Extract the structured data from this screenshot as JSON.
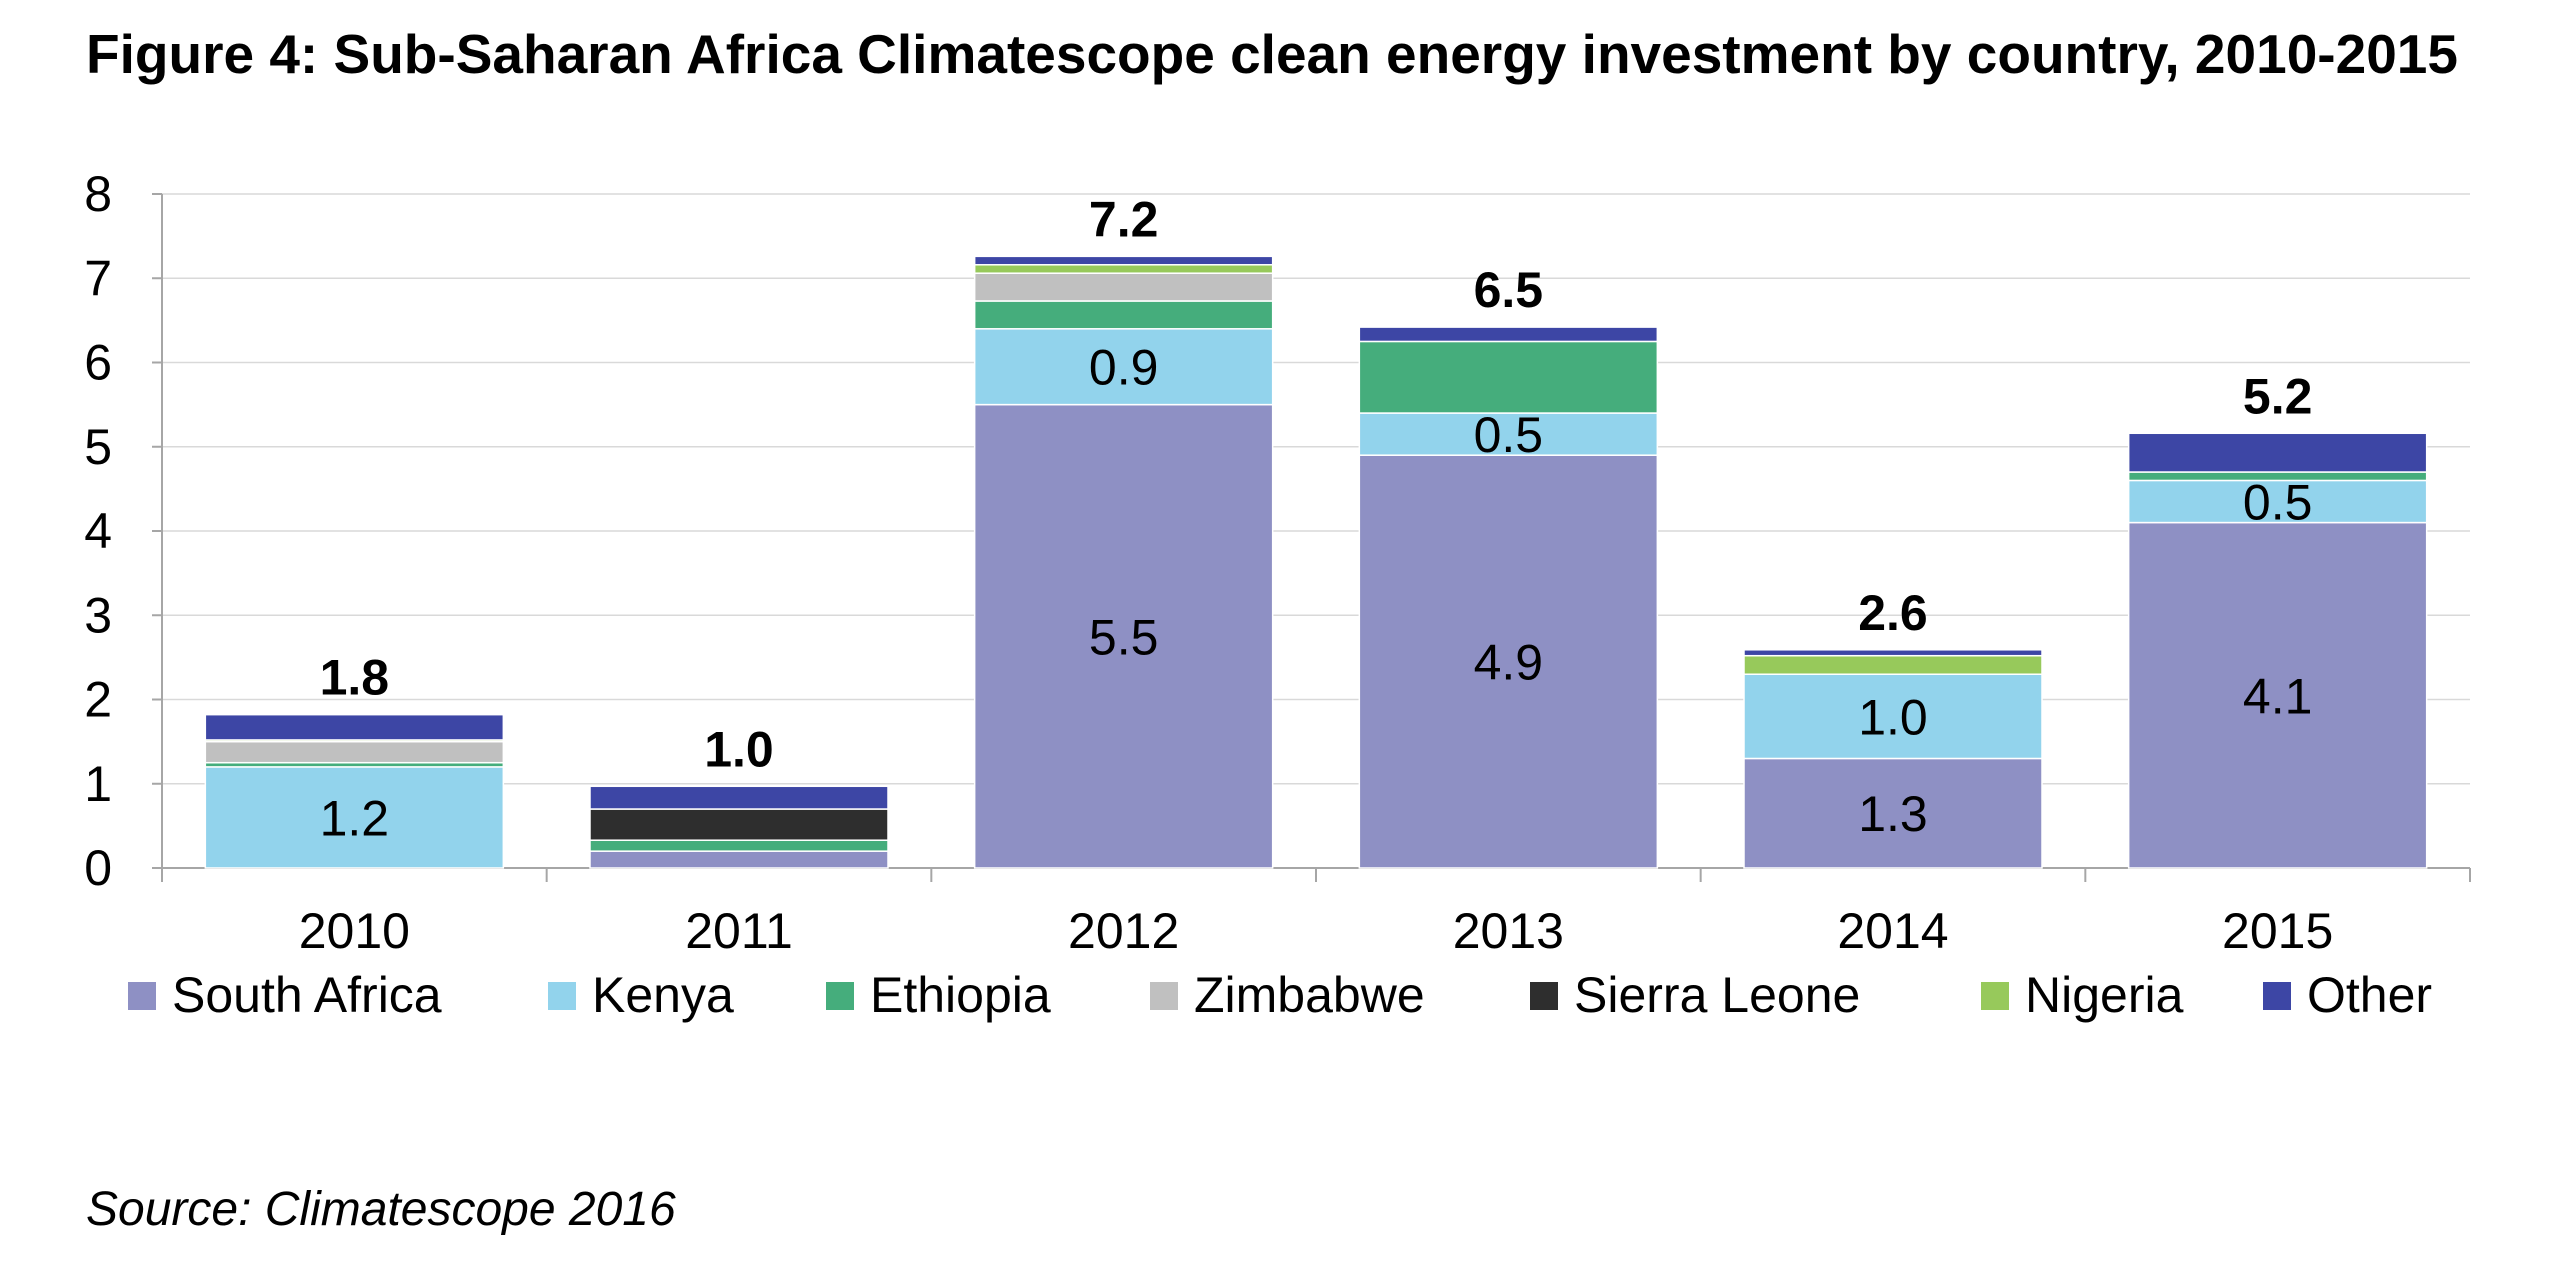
{
  "title": "Figure 4: Sub-Saharan Africa Climatescope clean energy investment by country, 2010-2015",
  "source": "Source: Climatescope 2016",
  "chart_data": {
    "type": "bar",
    "stacked": true,
    "title": "Figure 4: Sub-Saharan Africa Climatescope clean energy investment by country, 2010-2015",
    "xlabel": "",
    "ylabel": "",
    "ylim": [
      0,
      8
    ],
    "yticks": [
      "0",
      "1",
      "2",
      "3",
      "4",
      "5",
      "6",
      "7",
      "8"
    ],
    "grid": true,
    "legend_position": "bottom",
    "categories": [
      "2010",
      "2011",
      "2012",
      "2013",
      "2014",
      "2015"
    ],
    "series": [
      {
        "name": "South Africa",
        "color": "#8E90C4",
        "values": [
          0.0,
          0.2,
          5.5,
          4.9,
          1.3,
          4.1
        ],
        "labels": [
          "",
          "",
          "5.5",
          "4.9",
          "1.3",
          "4.1"
        ]
      },
      {
        "name": "Kenya",
        "color": "#92D3EC",
        "values": [
          1.2,
          0.0,
          0.9,
          0.5,
          1.0,
          0.5
        ],
        "labels": [
          "1.2",
          "",
          "0.9",
          "0.5",
          "1.0",
          "0.5"
        ]
      },
      {
        "name": "Ethiopia",
        "color": "#45AD7C",
        "values": [
          0.05,
          0.13,
          0.33,
          0.85,
          0.0,
          0.1
        ],
        "labels": [
          "",
          "",
          "",
          "",
          "",
          ""
        ]
      },
      {
        "name": "Zimbabwe",
        "color": "#C0C0C0",
        "values": [
          0.25,
          0.0,
          0.33,
          0.0,
          0.0,
          0.0
        ],
        "labels": [
          "",
          "",
          "",
          "",
          "",
          ""
        ]
      },
      {
        "name": "Sierra Leone",
        "color": "#2E2E2E",
        "values": [
          0.0,
          0.37,
          0.0,
          0.0,
          0.0,
          0.0
        ],
        "labels": [
          "",
          "",
          "",
          "",
          "",
          ""
        ]
      },
      {
        "name": "Nigeria",
        "color": "#97C95B",
        "values": [
          0.02,
          0.0,
          0.1,
          0.0,
          0.22,
          0.0
        ],
        "labels": [
          "",
          "",
          "",
          "",
          "",
          ""
        ]
      },
      {
        "name": "Other",
        "color": "#3D46A5",
        "values": [
          0.3,
          0.27,
          0.1,
          0.17,
          0.07,
          0.46
        ],
        "labels": [
          "",
          "",
          "",
          "",
          "",
          ""
        ]
      }
    ],
    "totals": [
      "1.8",
      "1.0",
      "7.2",
      "6.5",
      "2.6",
      "5.2"
    ]
  }
}
